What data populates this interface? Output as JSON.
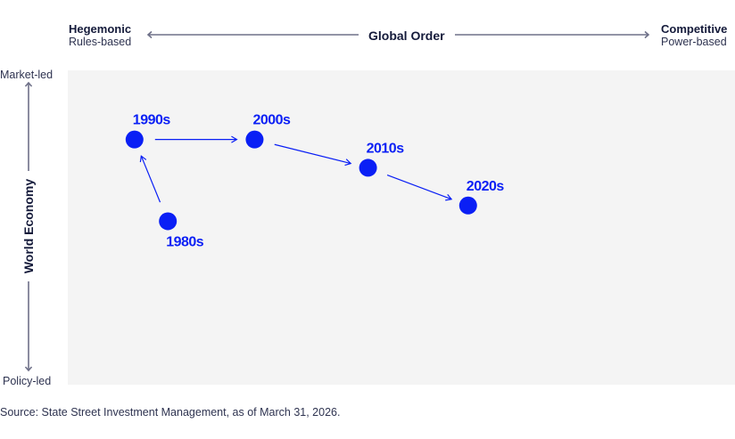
{
  "header": {
    "left_title": "Hegemonic",
    "left_sub": "Rules-based",
    "center_title": "Global Order",
    "right_title": "Competitive",
    "right_sub": "Power-based"
  },
  "y_axis": {
    "title": "World Economy",
    "top_label": "Market-led",
    "bottom_label": "Policy-led"
  },
  "chart_data": {
    "type": "scatter",
    "title": "",
    "xlabel": "Global Order",
    "ylabel": "World Economy",
    "x_range_labels": [
      "Rules-based",
      "Power-based"
    ],
    "y_range_labels": [
      "Policy-led",
      "Market-led"
    ],
    "xlim": [
      0,
      100
    ],
    "ylim": [
      0,
      100
    ],
    "points": [
      {
        "label": "1980s",
        "x": 15,
        "y": 52
      },
      {
        "label": "1990s",
        "x": 10,
        "y": 78
      },
      {
        "label": "2000s",
        "x": 28,
        "y": 78
      },
      {
        "label": "2010s",
        "x": 45,
        "y": 69
      },
      {
        "label": "2020s",
        "x": 60,
        "y": 57
      }
    ],
    "path_order": [
      "1980s",
      "1990s",
      "2000s",
      "2010s",
      "2020s"
    ],
    "color": "#0a1ff5"
  },
  "footer": {
    "source": "Source: State Street Investment Management, as of March 31, 2026."
  }
}
